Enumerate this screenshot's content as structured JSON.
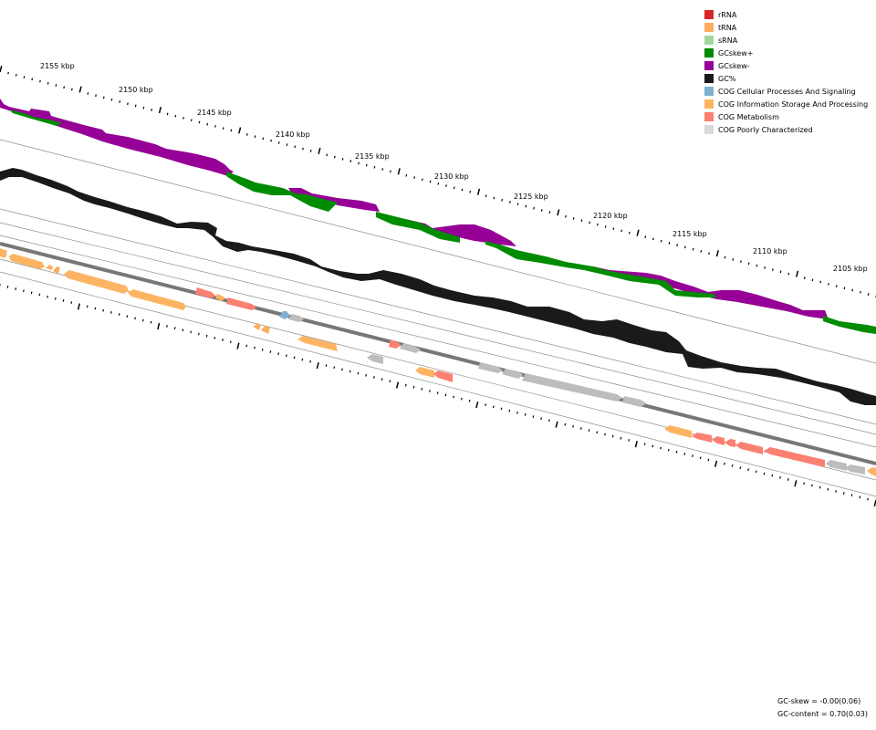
{
  "legend": {
    "items": [
      {
        "label": "rRNA",
        "color": "#d62728"
      },
      {
        "label": "tRNA",
        "color": "#fdae61"
      },
      {
        "label": "sRNA",
        "color": "#a1d99b"
      },
      {
        "label": "GCskew+",
        "color": "#008c00"
      },
      {
        "label": "GCskew-",
        "color": "#960096"
      },
      {
        "label": "GC%",
        "color": "#1a1a1a"
      },
      {
        "label": "COG Cellular Processes And Signaling",
        "color": "#7fb1d3"
      },
      {
        "label": "COG Information Storage And Processing",
        "color": "#fdb462"
      },
      {
        "label": "COG Metabolism",
        "color": "#fb8072"
      },
      {
        "label": "COG Poorly Characterized",
        "color": "#d9d9d9"
      }
    ]
  },
  "ruler": {
    "labels": [
      "2155 kbp",
      "2150 kbp",
      "2145 kbp",
      "2140 kbp",
      "2135 kbp",
      "2130 kbp",
      "2125 kbp",
      "2120 kbp",
      "2115 kbp",
      "2110 kbp",
      "2105 kbp"
    ]
  },
  "stats": {
    "gc_skew": "GC-skew = -0.00(0.06)",
    "gc_content": "GC-content = 0.70(0.03)"
  }
}
